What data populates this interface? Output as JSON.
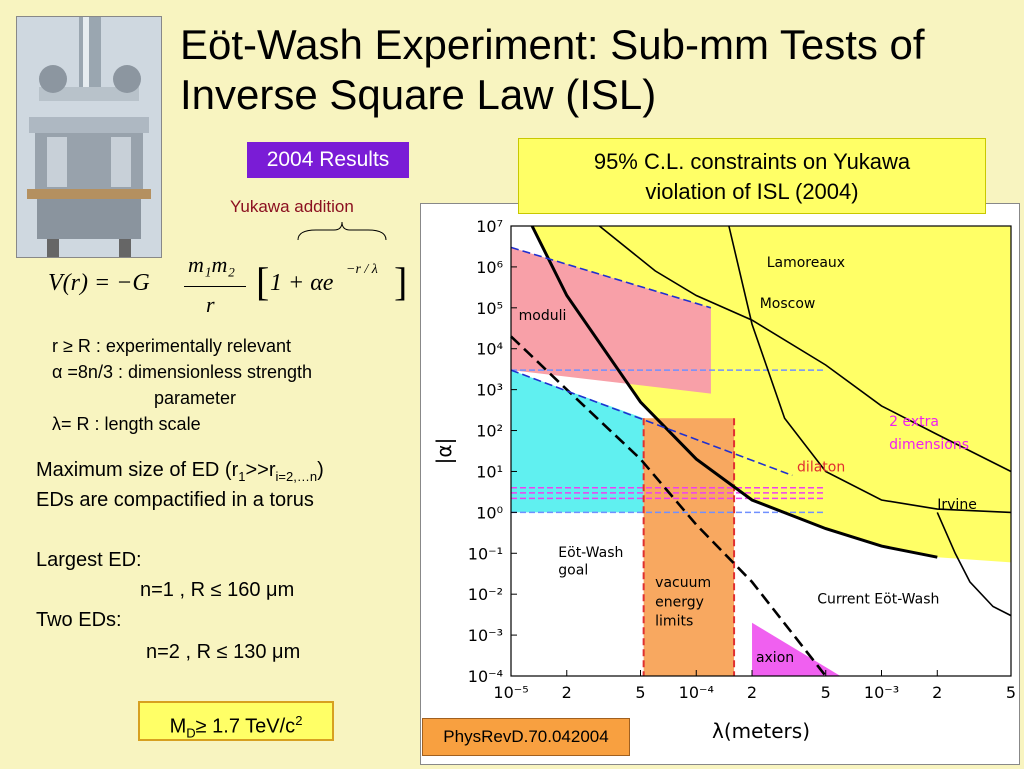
{
  "title": "Eöt-Wash Experiment: Sub-mm Tests of Inverse Square Law (ISL)",
  "results_badge": "2004 Results",
  "yukawa_label": "Yukawa addition",
  "formula": {
    "lhs": "V(r) = −G",
    "num": "m₁m₂",
    "den": "r",
    "bracket": "1 + αe",
    "exp": "−r / λ"
  },
  "definitions": [
    "r ≥ R      : experimentally relevant",
    "α =8n/3  : dimensionless strength",
    "parameter",
    "λ= R       : length scale"
  ],
  "body": {
    "line1_pre": "Maximum size of ED (r",
    "line1_sub1": "1",
    "line1_mid": ">>r",
    "line1_sub2": "i=2,…n",
    "line1_post": ")",
    "line2": "EDs are compactified in a torus",
    "largest": "Largest ED:",
    "n1": "n=1 , R ≤ 160 μm",
    "two": "Two  EDs:",
    "n2": "n=2 , R ≤ 130 μm"
  },
  "md_box": {
    "pre": "M",
    "sub": "D",
    "mid": "≥ 1.7 TeV/c",
    "sup": "2"
  },
  "cl_box": {
    "line1": "95% C.L. constraints on Yukawa",
    "line2": "violation of ISL (2004)"
  },
  "reference": "PhysRevD.70.042004",
  "colors": {
    "badge": "#7a1cd6",
    "yellow": "#ffff66",
    "orange": "#f8a040",
    "pink": "#f8a0a8",
    "cyan": "#60f0f0",
    "magenta": "#f060f0"
  },
  "chart_data": {
    "type": "line",
    "xlabel": "λ(meters)",
    "ylabel": "|α|",
    "x_scale": "log",
    "y_scale": "log",
    "xlim": [
      1e-05,
      0.005
    ],
    "ylim": [
      0.0001,
      10000000.0
    ],
    "x_ticks": [
      {
        "v": 1e-05,
        "label": "10⁻⁵"
      },
      {
        "v": 2e-05,
        "label": "2"
      },
      {
        "v": 5e-05,
        "label": "5"
      },
      {
        "v": 0.0001,
        "label": "10⁻⁴"
      },
      {
        "v": 0.0002,
        "label": "2"
      },
      {
        "v": 0.0005,
        "label": "5"
      },
      {
        "v": 0.001,
        "label": "10⁻³"
      },
      {
        "v": 0.002,
        "label": "2"
      },
      {
        "v": 0.005,
        "label": "5"
      }
    ],
    "y_ticks": [
      {
        "v": 10000000.0,
        "label": "10⁷"
      },
      {
        "v": 1000000.0,
        "label": "10⁶"
      },
      {
        "v": 100000.0,
        "label": "10⁵"
      },
      {
        "v": 10000.0,
        "label": "10⁴"
      },
      {
        "v": 1000.0,
        "label": "10³"
      },
      {
        "v": 100.0,
        "label": "10²"
      },
      {
        "v": 10.0,
        "label": "10¹"
      },
      {
        "v": 1.0,
        "label": "10⁰"
      },
      {
        "v": 0.1,
        "label": "10⁻¹"
      },
      {
        "v": 0.01,
        "label": "10⁻²"
      },
      {
        "v": 0.001,
        "label": "10⁻³"
      },
      {
        "v": 0.0001,
        "label": "10⁻⁴"
      }
    ],
    "series": [
      {
        "key": "current",
        "x": [
          1.3e-05,
          2e-05,
          5e-05,
          0.0001,
          0.0002,
          0.0005,
          0.001,
          0.002
        ],
        "y": [
          10000000.0,
          200000.0,
          500.0,
          20.0,
          2,
          0.4,
          0.15,
          0.08
        ]
      },
      {
        "key": "lamoreaux",
        "x": [
          3e-05,
          6e-05,
          0.0001,
          0.0002,
          0.0005,
          0.001,
          0.002,
          0.005
        ],
        "y": [
          10000000.0,
          800000.0,
          200000.0,
          50000.0,
          4000.0,
          400.0,
          80.0,
          10.0
        ]
      },
      {
        "key": "moscow",
        "x": [
          0.00015,
          0.0002,
          0.0003,
          0.0005,
          0.001,
          0.002,
          0.005
        ],
        "y": [
          10000000.0,
          40000.0,
          200.0,
          10.0,
          2,
          1.2,
          1
        ]
      },
      {
        "key": "irvine",
        "x": [
          0.002,
          0.0025,
          0.003,
          0.004,
          0.005
        ],
        "y": [
          1,
          0.1,
          0.02,
          0.005,
          0.003
        ]
      },
      {
        "key": "eotwash_dashed",
        "x": [
          1e-05,
          2e-05,
          5e-05,
          0.0001,
          0.0002,
          0.0005
        ],
        "y": [
          20000.0,
          1000.0,
          20.0,
          0.5,
          0.02,
          0.0001
        ]
      },
      {
        "key": "moduli_dashed",
        "x": [
          1e-05,
          0.00012
        ],
        "y": [
          3000000.0,
          100000.0
        ]
      },
      {
        "key": "dilaton_dashed",
        "x": [
          1e-05,
          0.00033
        ],
        "y": [
          3000.0,
          8
        ]
      }
    ],
    "lines_h": [
      {
        "y": 3000.0,
        "x": [
          1e-05,
          0.0005
        ],
        "color": "#7090ff"
      },
      {
        "y": 4.0,
        "x": [
          1e-05,
          0.0005
        ],
        "color": "#f040f0"
      },
      {
        "y": 3.0,
        "x": [
          1e-05,
          0.0005
        ],
        "color": "#f040f0"
      },
      {
        "y": 2.2,
        "x": [
          1e-05,
          0.0005
        ],
        "color": "#f040f0"
      },
      {
        "y": 1.0,
        "x": [
          1e-05,
          0.0005
        ],
        "color": "#7090ff"
      }
    ],
    "lines_v": [
      {
        "x": 5.2e-05,
        "color": "#e03030"
      },
      {
        "x": 0.00016,
        "color": "#e03030"
      }
    ],
    "annotations": [
      {
        "key": "lamoreaux",
        "text": "Lamoreaux",
        "x": 0.00024,
        "y": 1000000.0,
        "color": "#000"
      },
      {
        "key": "moscow",
        "text": "Moscow",
        "x": 0.00022,
        "y": 100000.0,
        "color": "#000"
      },
      {
        "key": "moduli",
        "text": "moduli",
        "x": 1.1e-05,
        "y": 50000.0,
        "color": "#000"
      },
      {
        "key": "dilaton",
        "text": "dilaton",
        "x": 0.00035,
        "y": 10.0,
        "color": "#e03030"
      },
      {
        "key": "extra1",
        "text": "2  extra",
        "x": 0.0011,
        "y": 130.0,
        "color": "#f020f0"
      },
      {
        "key": "extra2",
        "text": "dimensions",
        "x": 0.0011,
        "y": 35.0,
        "color": "#f020f0"
      },
      {
        "key": "irvine",
        "text": "Irvine",
        "x": 0.002,
        "y": 1.2,
        "color": "#000"
      },
      {
        "key": "eotwash1",
        "text": "Eöt-Wash",
        "x": 1.8e-05,
        "y": 0.08,
        "color": "#000"
      },
      {
        "key": "eotwash2",
        "text": "goal",
        "x": 1.8e-05,
        "y": 0.03,
        "color": "#000"
      },
      {
        "key": "vac1",
        "text": "vacuum",
        "x": 6e-05,
        "y": 0.015,
        "color": "#000"
      },
      {
        "key": "vac2",
        "text": "energy",
        "x": 6e-05,
        "y": 0.005,
        "color": "#000"
      },
      {
        "key": "vac3",
        "text": "limits",
        "x": 6e-05,
        "y": 0.0017,
        "color": "#000"
      },
      {
        "key": "current",
        "text": "Current Eöt-Wash",
        "x": 0.00045,
        "y": 0.006,
        "color": "#000"
      },
      {
        "key": "axion",
        "text": "axion",
        "x": 0.00021,
        "y": 0.00022,
        "color": "#000"
      }
    ]
  }
}
